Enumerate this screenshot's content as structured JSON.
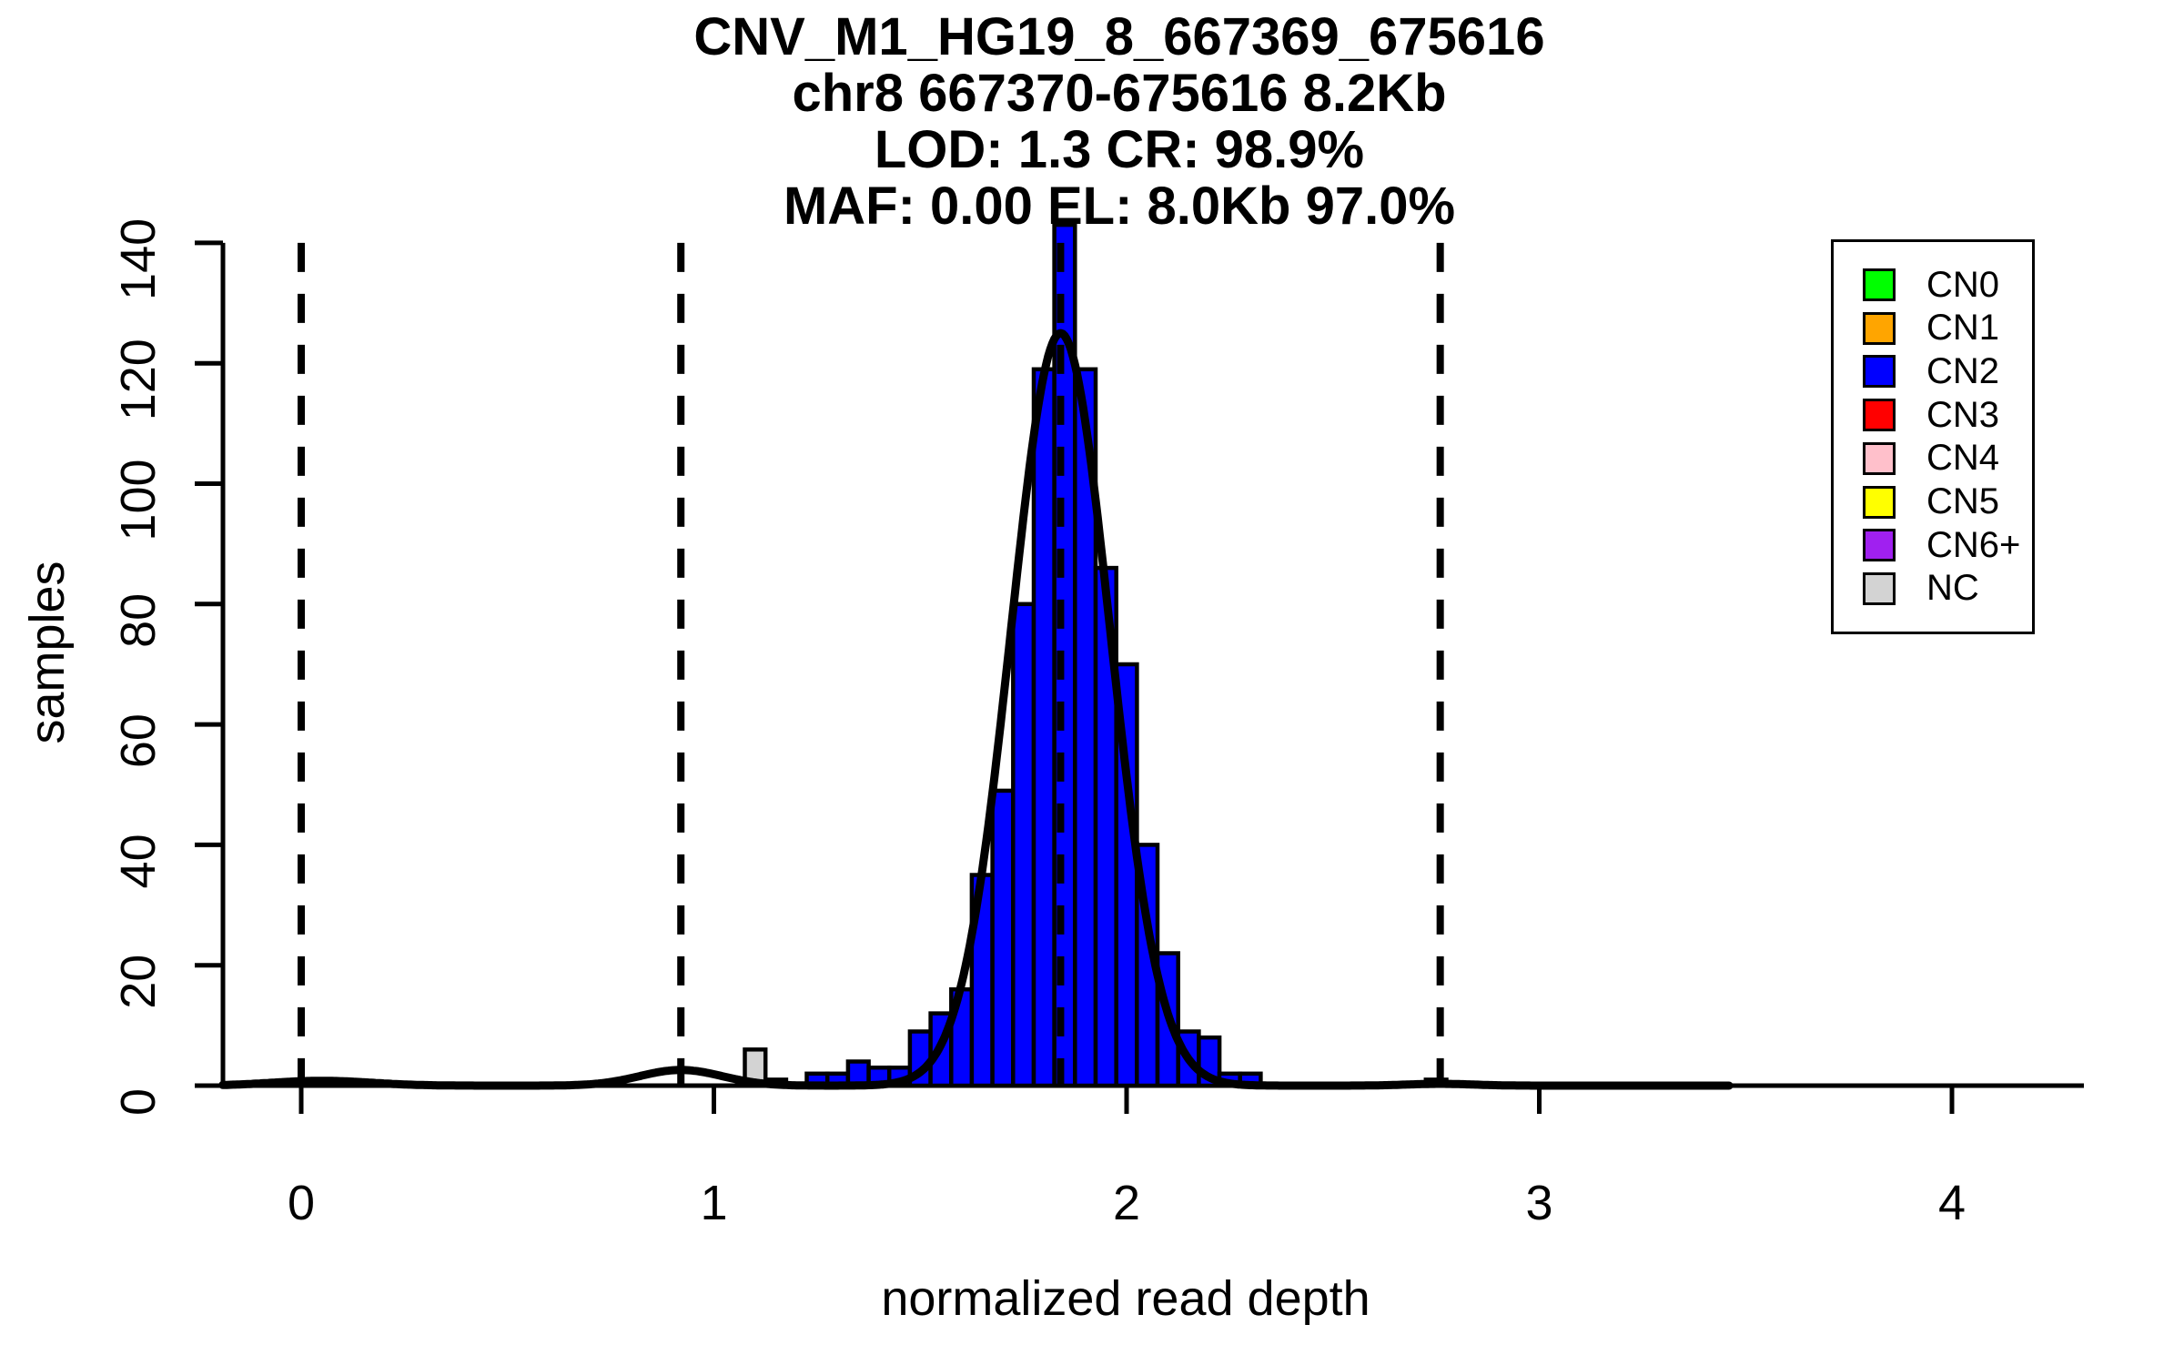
{
  "title": {
    "line1": "CNV_M1_HG19_8_667369_675616",
    "line2": "chr8 667370-675616 8.2Kb",
    "line3": "LOD: 1.3 CR: 98.9%",
    "line4": "MAF: 0.00 EL: 8.0Kb 97.0%"
  },
  "axes": {
    "x": {
      "label": "normalized read depth",
      "ticks": [
        0,
        1,
        2,
        3,
        4
      ]
    },
    "y": {
      "label": "samples",
      "ticks": [
        0,
        20,
        40,
        60,
        80,
        100,
        120,
        140
      ]
    }
  },
  "legend": {
    "items": [
      {
        "label": "CN0",
        "color": "#00FF00"
      },
      {
        "label": "CN1",
        "color": "#FFA500"
      },
      {
        "label": "CN2",
        "color": "#0000FF"
      },
      {
        "label": "CN3",
        "color": "#FF0000"
      },
      {
        "label": "CN4",
        "color": "#FFC0CB"
      },
      {
        "label": "CN5",
        "color": "#FFFF00"
      },
      {
        "label": "CN6+",
        "color": "#A020F0"
      },
      {
        "label": "NC",
        "color": "#D3D3D3"
      }
    ]
  },
  "chart_data": {
    "type": "bar",
    "subtype": "histogram",
    "title": "CNV_M1_HG19_8_667369_675616 / chr8 667370-675616 8.2Kb / LOD: 1.3 CR: 98.9% / MAF: 0.00 EL: 8.0Kb 97.0%",
    "xlabel": "normalized read depth",
    "ylabel": "samples",
    "xlim": [
      -0.19,
      4.32
    ],
    "ylim": [
      0,
      140
    ],
    "grid": false,
    "legend_position": "top-right",
    "bin_width": 0.05,
    "bars": [
      {
        "center": 1.1,
        "count": 6,
        "category": "NC"
      },
      {
        "center": 1.15,
        "count": 1,
        "category": "blank"
      },
      {
        "center": 1.25,
        "count": 2,
        "category": "CN2"
      },
      {
        "center": 1.3,
        "count": 2,
        "category": "CN2"
      },
      {
        "center": 1.35,
        "count": 4,
        "category": "CN2"
      },
      {
        "center": 1.4,
        "count": 3,
        "category": "CN2"
      },
      {
        "center": 1.45,
        "count": 3,
        "category": "CN2"
      },
      {
        "center": 1.5,
        "count": 9,
        "category": "CN2"
      },
      {
        "center": 1.55,
        "count": 12,
        "category": "CN2"
      },
      {
        "center": 1.6,
        "count": 16,
        "category": "CN2"
      },
      {
        "center": 1.65,
        "count": 35,
        "category": "CN2"
      },
      {
        "center": 1.7,
        "count": 49,
        "category": "CN2"
      },
      {
        "center": 1.75,
        "count": 80,
        "category": "CN2"
      },
      {
        "center": 1.8,
        "count": 119,
        "category": "CN2"
      },
      {
        "center": 1.85,
        "count": 143,
        "category": "CN2"
      },
      {
        "center": 1.9,
        "count": 119,
        "category": "CN2"
      },
      {
        "center": 1.95,
        "count": 86,
        "category": "CN2"
      },
      {
        "center": 2.0,
        "count": 70,
        "category": "CN2"
      },
      {
        "center": 2.05,
        "count": 40,
        "category": "CN2"
      },
      {
        "center": 2.1,
        "count": 22,
        "category": "CN2"
      },
      {
        "center": 2.15,
        "count": 9,
        "category": "CN2"
      },
      {
        "center": 2.2,
        "count": 8,
        "category": "CN2"
      },
      {
        "center": 2.25,
        "count": 2,
        "category": "CN2"
      },
      {
        "center": 2.3,
        "count": 2,
        "category": "CN2"
      },
      {
        "center": 2.75,
        "count": 1,
        "category": "CN3"
      }
    ],
    "density_curve": {
      "x_range": [
        -0.19,
        3.46
      ],
      "components": [
        {
          "mean": 0.05,
          "sd": 0.12,
          "amp": 0.8
        },
        {
          "mean": 0.92,
          "sd": 0.1,
          "amp": 2.6
        },
        {
          "mean": 1.84,
          "sd": 0.12,
          "amp": 125
        },
        {
          "mean": 2.76,
          "sd": 0.08,
          "amp": 0.3
        }
      ]
    },
    "dashed_vlines": [
      0,
      0.92,
      1.84,
      2.76
    ],
    "colors": {
      "CN0": "#00FF00",
      "CN1": "#FFA500",
      "CN2": "#0000FF",
      "CN3": "#FF0000",
      "CN4": "#FFC0CB",
      "CN5": "#FFFF00",
      "CN6+": "#A020F0",
      "NC": "#D3D3D3",
      "blank": "#FFFFFF",
      "axis": "#000000",
      "curve": "#000000"
    }
  }
}
